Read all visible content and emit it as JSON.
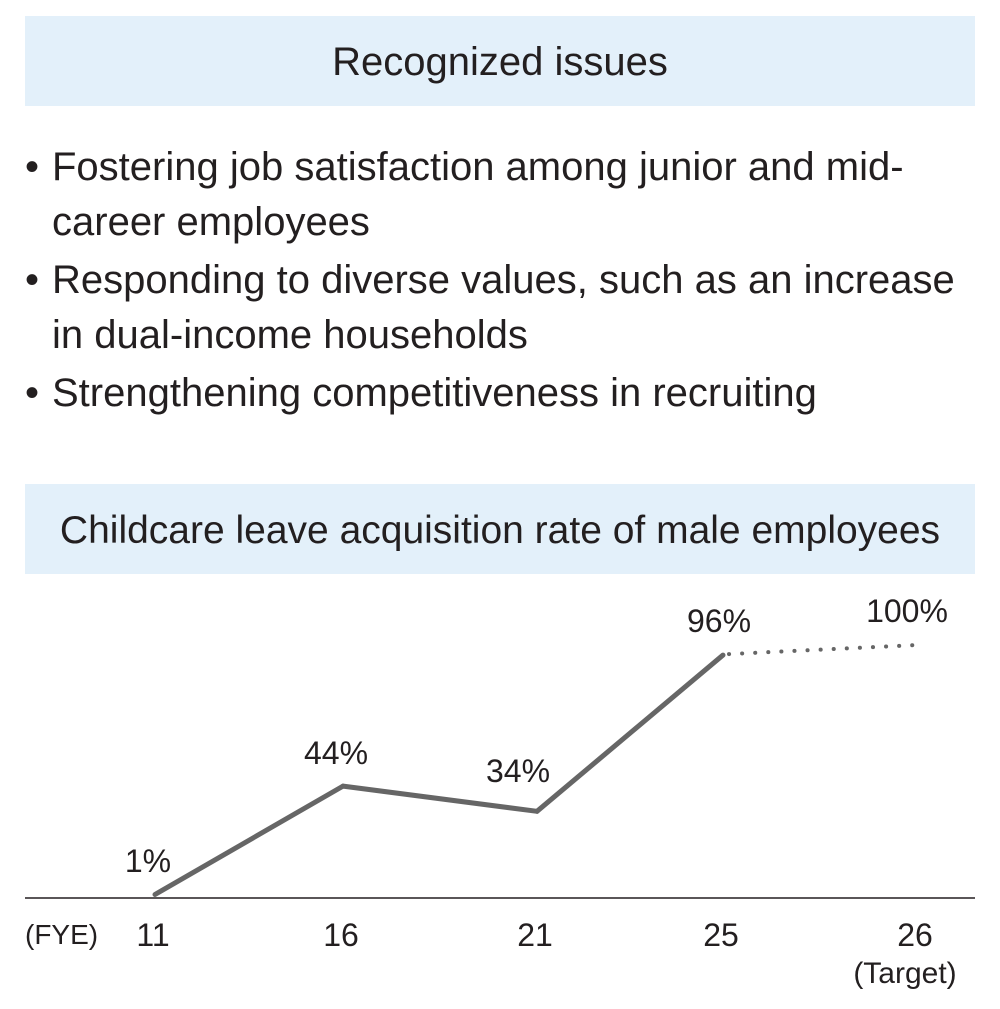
{
  "issues_section": {
    "title": "Recognized issues",
    "items": [
      "Fostering job satisfaction among junior and mid-career employees",
      "Responding to diverse values, such as an increase in dual-income households",
      "Strengthening competitiveness in recruiting"
    ],
    "bullet": "•"
  },
  "chart_title": "Childcare leave acquisition rate of male employees",
  "chart_data": {
    "type": "line",
    "title": "Childcare leave acquisition rate of male employees",
    "x_axis_label": "(FYE)",
    "categories": [
      "11",
      "16",
      "21",
      "25",
      "26"
    ],
    "category_sublabels": [
      "",
      "",
      "",
      "",
      "(Target)"
    ],
    "values": [
      1,
      44,
      34,
      96,
      100
    ],
    "data_labels": [
      "1%",
      "44%",
      "34%",
      "96%",
      "100%"
    ],
    "unit": "%",
    "target_index": 4,
    "line_color": "#666666",
    "grid": false,
    "legend": "none"
  }
}
